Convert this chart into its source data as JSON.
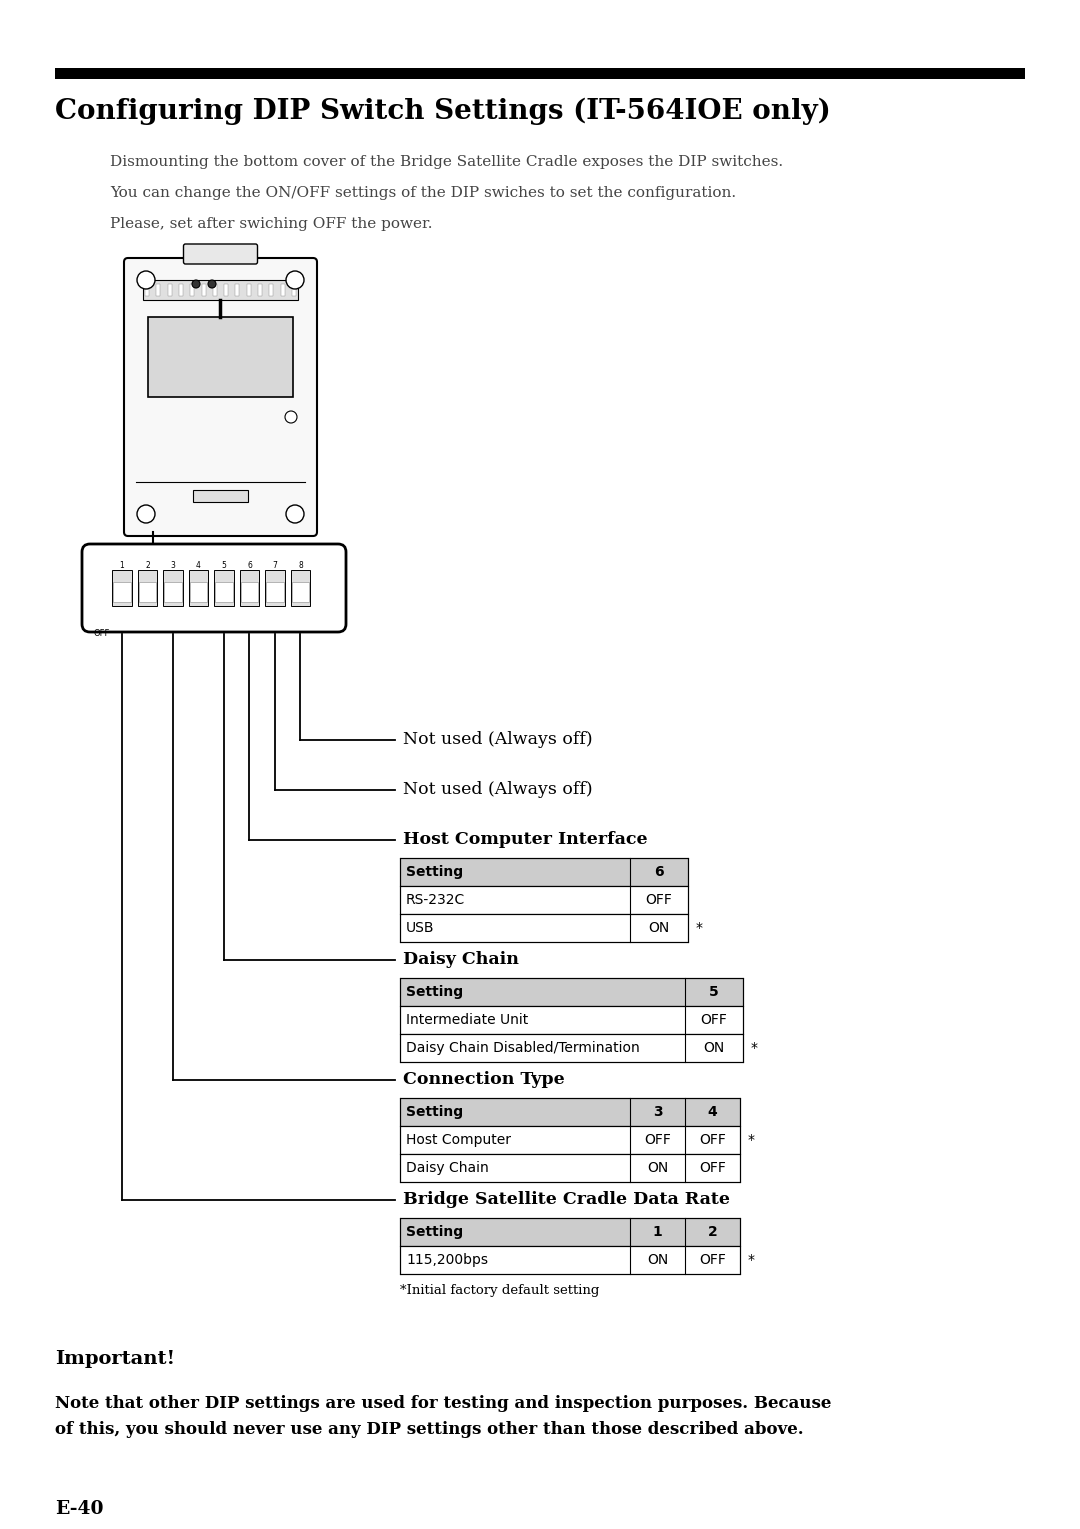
{
  "title": "Configuring DIP Switch Settings (IT-564IOE only)",
  "intro_text": [
    "Dismounting the bottom cover of the Bridge Satellite Cradle exposes the DIP switches.",
    "You can change the ON/OFF settings of the DIP swiches to set the configuration.",
    "Please, set after swiching OFF the power."
  ],
  "labels": {
    "not_used_1": "Not used (Always off)",
    "not_used_2": "Not used (Always off)",
    "host_computer": "Host Computer Interface",
    "daisy_chain": "Daisy Chain",
    "connection_type": "Connection Type",
    "data_rate": "Bridge Satellite Cradle Data Rate"
  },
  "table_host": {
    "header": [
      "Setting",
      "6"
    ],
    "rows": [
      [
        "RS-232C",
        "OFF"
      ],
      [
        "USB",
        "ON"
      ]
    ],
    "asterisk_row": 1
  },
  "table_daisy": {
    "header": [
      "Setting",
      "5"
    ],
    "rows": [
      [
        "Intermediate Unit",
        "OFF"
      ],
      [
        "Daisy Chain Disabled/Termination",
        "ON"
      ]
    ],
    "asterisk_row": 1
  },
  "table_connection": {
    "header": [
      "Setting",
      "3",
      "4"
    ],
    "rows": [
      [
        "Host Computer",
        "OFF",
        "OFF"
      ],
      [
        "Daisy Chain",
        "ON",
        "OFF"
      ]
    ],
    "asterisk_row": 0
  },
  "table_data_rate": {
    "header": [
      "Setting",
      "1",
      "2"
    ],
    "rows": [
      [
        "115,200bps",
        "ON",
        "OFF"
      ]
    ],
    "asterisk_row": 0
  },
  "footnote": "*Initial factory default setting",
  "important_title": "Important!",
  "important_text": "Note that other DIP settings are used for testing and inspection purposes. Because\nof this, you should never use any DIP settings other than those described above.",
  "page_num": "E-40",
  "bg_color": "#ffffff"
}
